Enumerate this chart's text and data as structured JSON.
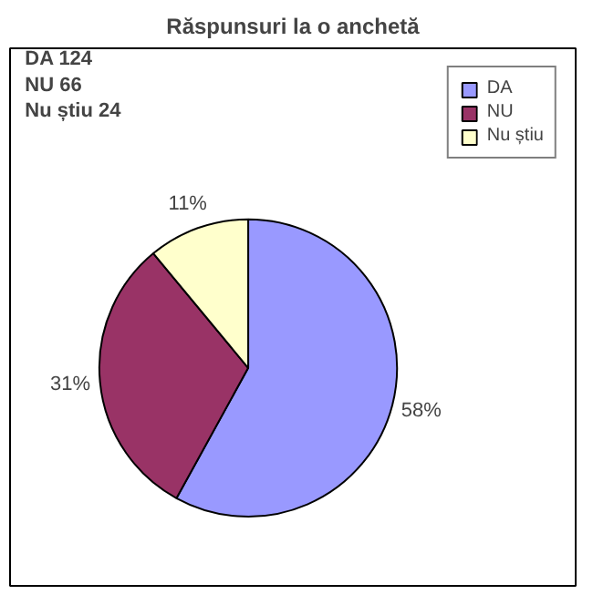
{
  "chart_data": {
    "type": "pie",
    "title": "Răspunsuri la o anchetă",
    "categories": [
      "DA",
      "NU",
      "Nu știu"
    ],
    "values": [
      58,
      31,
      11
    ],
    "colors": [
      "#9999ff",
      "#993366",
      "#ffffcc"
    ],
    "value_labels": [
      "58%",
      "31%",
      "11%"
    ],
    "legend": "top right",
    "annotations": [
      "DA 124",
      "NU 66",
      "Nu știu 24"
    ]
  }
}
